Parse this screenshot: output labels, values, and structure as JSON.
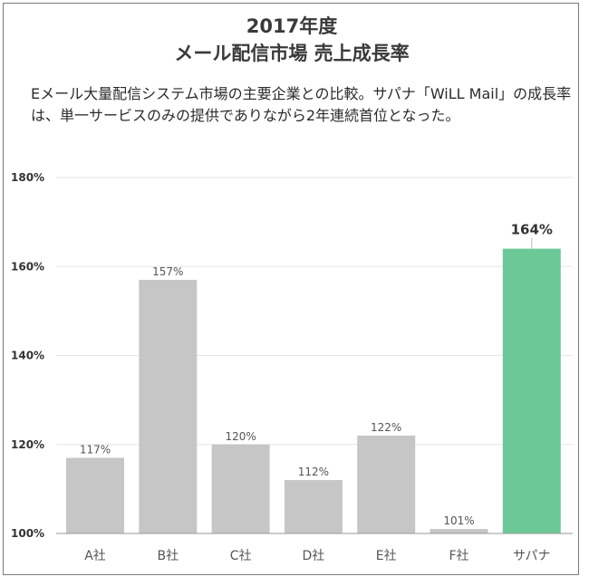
{
  "chart_data": {
    "type": "bar",
    "title_lines": [
      "2017年度",
      "メール配信市場 売上成長率"
    ],
    "subtitle": "Eメール大量配信システム市場の主要企業との比較。サパナ「WiLL Mail」の成長率は、単一サービスのみの提供でありながら2年連続首位となった。",
    "categories": [
      "A社",
      "B社",
      "C社",
      "D社",
      "E社",
      "F社",
      "サパナ"
    ],
    "values": [
      117,
      157,
      120,
      112,
      122,
      101,
      164
    ],
    "value_labels": [
      "117%",
      "157%",
      "120%",
      "112%",
      "122%",
      "101%",
      "164%"
    ],
    "highlight_index": 6,
    "ylim": [
      100,
      180
    ],
    "yticks": [
      100,
      120,
      140,
      160,
      180
    ],
    "ytick_labels": [
      "100%",
      "120%",
      "140%",
      "160%",
      "180%"
    ],
    "grid": true,
    "xlabel": "",
    "ylabel": "",
    "colors": {
      "bar": "#c6c6c6",
      "highlight": "#6cc997",
      "grid": "#e6e6e6",
      "axis": "#9a9a9a"
    }
  }
}
